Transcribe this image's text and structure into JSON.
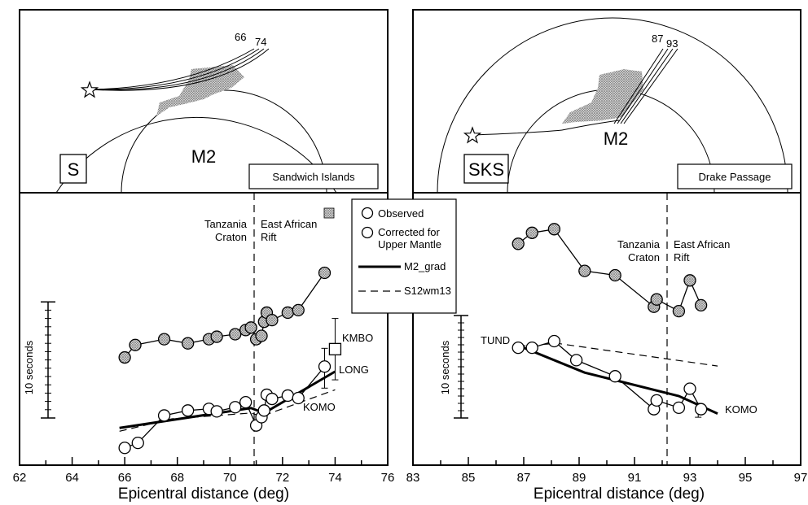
{
  "chart_data": [
    {
      "type": "scatter",
      "phase_label": "S",
      "source_label": "Sandwich Islands",
      "core_label": "M2",
      "ray_labels": [
        "66",
        "74"
      ],
      "region_labels": [
        [
          "Tanzania",
          "Craton"
        ],
        [
          "East African",
          "Rift"
        ]
      ],
      "boundary_x": 71,
      "xlabel": "Epicentral distance (deg)",
      "xlim": [
        62,
        76
      ],
      "xticks": [
        "62",
        "64",
        "66",
        "68",
        "70",
        "72",
        "74",
        "76"
      ],
      "scale_label": "10 seconds",
      "station_labels": [
        "KMBO",
        "LONG",
        "KOMO"
      ],
      "series": [
        {
          "name": "Corrected for Upper Mantle",
          "x": [
            66.0,
            66.4,
            67.5,
            68.4,
            69.2,
            69.5,
            70.2,
            70.6,
            70.8,
            71.0,
            71.2,
            71.3,
            71.4,
            71.6,
            72.2,
            72.6,
            73.6
          ],
          "y": [
            7.3,
            8.8,
            9.5,
            9.0,
            9.5,
            9.8,
            10.1,
            10.6,
            10.9,
            9.5,
            9.9,
            11.6,
            12.7,
            11.8,
            12.7,
            13.0,
            17.5
          ]
        },
        {
          "name": "Observed",
          "x": [
            66.0,
            66.5,
            67.5,
            68.4,
            69.2,
            69.5,
            70.2,
            70.6,
            71.0,
            71.2,
            71.3,
            71.4,
            71.6,
            72.2,
            72.6,
            73.6
          ],
          "y": [
            -3.6,
            -3.0,
            0.3,
            0.9,
            1.1,
            0.8,
            1.3,
            1.9,
            -0.9,
            0.1,
            0.9,
            2.8,
            2.3,
            2.7,
            2.4,
            6.2
          ]
        },
        {
          "name": "M2_grad",
          "x": [
            65.8,
            70.8,
            71.3,
            74.0
          ],
          "y": [
            -1.2,
            1.2,
            0.6,
            5.6
          ]
        },
        {
          "name": "S12wm13",
          "x": [
            65.8,
            67.8,
            70.8,
            71.2,
            74.0
          ],
          "y": [
            -1.6,
            -0.1,
            0.6,
            0.2,
            3.4
          ]
        }
      ],
      "kmbo_point": {
        "x": 74.0,
        "y": 8.3,
        "err_hi": 12.0,
        "err_lo": 4.6
      },
      "long_err": {
        "x": 73.6,
        "hi": 8.4,
        "lo": 3.6
      },
      "scale_bar_y": [
        0,
        14
      ]
    },
    {
      "type": "scatter",
      "phase_label": "SKS",
      "source_label": "Drake Passage",
      "core_label": "M2",
      "ray_labels": [
        "87",
        "93"
      ],
      "region_labels": [
        [
          "Tanzania",
          "Craton"
        ],
        [
          "East African",
          "Rift"
        ]
      ],
      "boundary_x": 92,
      "xlabel": "Epicentral distance (deg)",
      "xlim": [
        83,
        97
      ],
      "xticks": [
        "83",
        "85",
        "87",
        "89",
        "91",
        "93",
        "95",
        "97"
      ],
      "scale_label": "10 seconds",
      "station_labels": [
        "TUND",
        "KOMO"
      ],
      "series": [
        {
          "name": "Corrected for Upper Mantle",
          "x": [
            86.8,
            87.3,
            88.1,
            89.2,
            90.3,
            91.7,
            91.8,
            92.6,
            93.0,
            93.4
          ],
          "y": [
            20.8,
            22.3,
            22.8,
            17.1,
            16.5,
            12.2,
            13.2,
            11.6,
            15.8,
            12.4
          ]
        },
        {
          "name": "Observed",
          "x": [
            86.8,
            87.3,
            88.1,
            88.9,
            90.3,
            91.7,
            91.8,
            92.6,
            93.0,
            93.4
          ],
          "y": [
            6.6,
            6.6,
            7.5,
            4.9,
            2.7,
            -1.8,
            -0.6,
            -1.6,
            1.0,
            -1.8
          ]
        },
        {
          "name": "M2_grad",
          "x": [
            86.8,
            89.2,
            92.6,
            94.0
          ],
          "y": [
            6.9,
            3.2,
            0.0,
            -2.4
          ]
        },
        {
          "name": "S12wm13",
          "x": [
            86.8,
            88.2,
            94.0
          ],
          "y": [
            6.8,
            7.2,
            4.1
          ]
        }
      ],
      "komo_err": {
        "x": 93.3,
        "hi": -1.0,
        "lo": -2.9
      },
      "scale_bar_y": [
        -3,
        11
      ]
    }
  ],
  "legend": {
    "items": [
      "Observed",
      "Corrected for Upper Mantle",
      "M2_grad",
      "S12wm13"
    ],
    "corrected_line1": "Corrected for",
    "corrected_line2": "Upper Mantle"
  }
}
